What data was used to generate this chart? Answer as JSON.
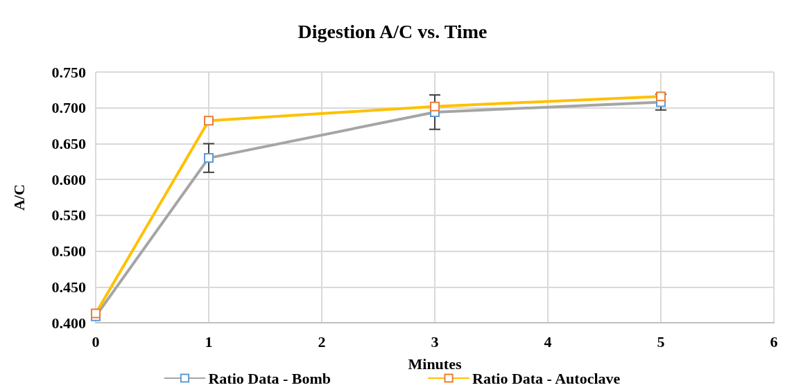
{
  "chart_data": {
    "type": "line",
    "title": "Digestion A/C vs. Time",
    "xlabel": "Minutes",
    "ylabel": "A/C",
    "x": [
      0,
      1,
      3,
      5
    ],
    "series": [
      {
        "name": "Ratio Data - Bomb",
        "color": "#a5a5a5",
        "colors": [
          "#5b9bd5",
          "#5b9bd5",
          "#5b9bd5",
          "#5b9bd5"
        ],
        "values": [
          0.409,
          0.63,
          0.694,
          0.708
        ],
        "errors": [
          null,
          0.02,
          0.024,
          0.011
        ]
      },
      {
        "name": "Ratio Data - Autoclave",
        "color": "#ffc000",
        "colors": [
          "#ed7d31",
          "#ed7d31",
          "#ed7d31",
          "#ed7d31"
        ],
        "values": [
          0.413,
          0.682,
          0.702,
          0.716
        ]
      }
    ],
    "xlim": [
      0,
      6
    ],
    "xticks": [
      0,
      1,
      2,
      3,
      4,
      5,
      6
    ],
    "ylim": [
      0.4,
      0.75
    ],
    "yticks": [
      {
        "value": 0.4,
        "label": "0.400"
      },
      {
        "value": 0.45,
        "label": "0.450"
      },
      {
        "value": 0.5,
        "label": "0.500"
      },
      {
        "value": 0.55,
        "label": "0.550"
      },
      {
        "value": 0.6,
        "label": "0.600"
      },
      {
        "value": 0.65,
        "label": "0.650"
      },
      {
        "value": 0.7,
        "label": "0.700"
      },
      {
        "value": 0.75,
        "label": "0.750"
      }
    ],
    "grid": true,
    "legend": "bottom",
    "marker": "square",
    "line_style": "solid"
  }
}
